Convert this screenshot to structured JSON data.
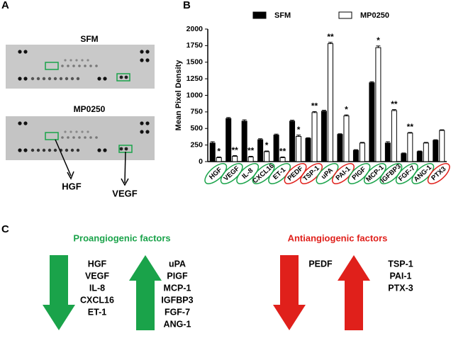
{
  "panels": {
    "a": "A",
    "b": "B",
    "c": "C"
  },
  "blots": {
    "top_title": "SFM",
    "bottom_title": "MP0250",
    "callout_left": "HGF",
    "callout_right": "VEGF"
  },
  "chart_data": {
    "type": "bar",
    "y_label": "Mean Pixel Density",
    "categories": [
      "HGF",
      "VEGF",
      "IL-8",
      "CXCL16",
      "ET-1",
      "PEDF",
      "TSP-1",
      "uPA",
      "PAI-1",
      "PlGF",
      "MCP-1",
      "IGFBP3",
      "FGF-7",
      "ANG-1",
      "PTX3"
    ],
    "label_colors": [
      "#1aa34a",
      "#1aa34a",
      "#1aa34a",
      "#1aa34a",
      "#1aa34a",
      "#e0201b",
      "#e0201b",
      "#1aa34a",
      "#e0201b",
      "#1aa34a",
      "#1aa34a",
      "#1aa34a",
      "#1aa34a",
      "#1aa34a",
      "#e0201b"
    ],
    "series": [
      {
        "name": "SFM",
        "color": "#000000",
        "values": [
          280,
          650,
          610,
          330,
          400,
          610,
          350,
          760,
          410,
          170,
          1190,
          280,
          120,
          150,
          320
        ],
        "errors": [
          20,
          15,
          20,
          15,
          15,
          15,
          10,
          15,
          10,
          10,
          15,
          20,
          10,
          10,
          10
        ]
      },
      {
        "name": "MP0250",
        "color": "#ffffff",
        "values": [
          60,
          80,
          70,
          150,
          60,
          380,
          740,
          1780,
          690,
          280,
          1720,
          770,
          430,
          280,
          470
        ],
        "errors": [
          10,
          10,
          10,
          10,
          10,
          20,
          15,
          20,
          15,
          10,
          25,
          15,
          10,
          10,
          10
        ]
      }
    ],
    "significance": [
      "*",
      "**",
      "**",
      "*",
      "**",
      "*",
      "**",
      "**",
      "*",
      null,
      "*",
      "**",
      "**",
      null,
      null
    ],
    "ylim": [
      0,
      2000
    ],
    "yticks": [
      0,
      250,
      500,
      750,
      1000,
      1250,
      1500,
      1750,
      2000
    ],
    "grid": false,
    "legend": "top"
  },
  "summary": {
    "pro": {
      "title": "Proangiogenic factors",
      "down": [
        "HGF",
        "VEGF",
        "IL-8",
        "CXCL16",
        "ET-1"
      ],
      "up": [
        "uPA",
        "PIGF",
        "MCP-1",
        "IGFBP3",
        "FGF-7",
        "ANG-1"
      ]
    },
    "anti": {
      "title": "Antiangiogenic factors",
      "down": [
        "PEDF"
      ],
      "up": [
        "TSP-1",
        "PAI-1",
        "PTX-3"
      ]
    }
  }
}
